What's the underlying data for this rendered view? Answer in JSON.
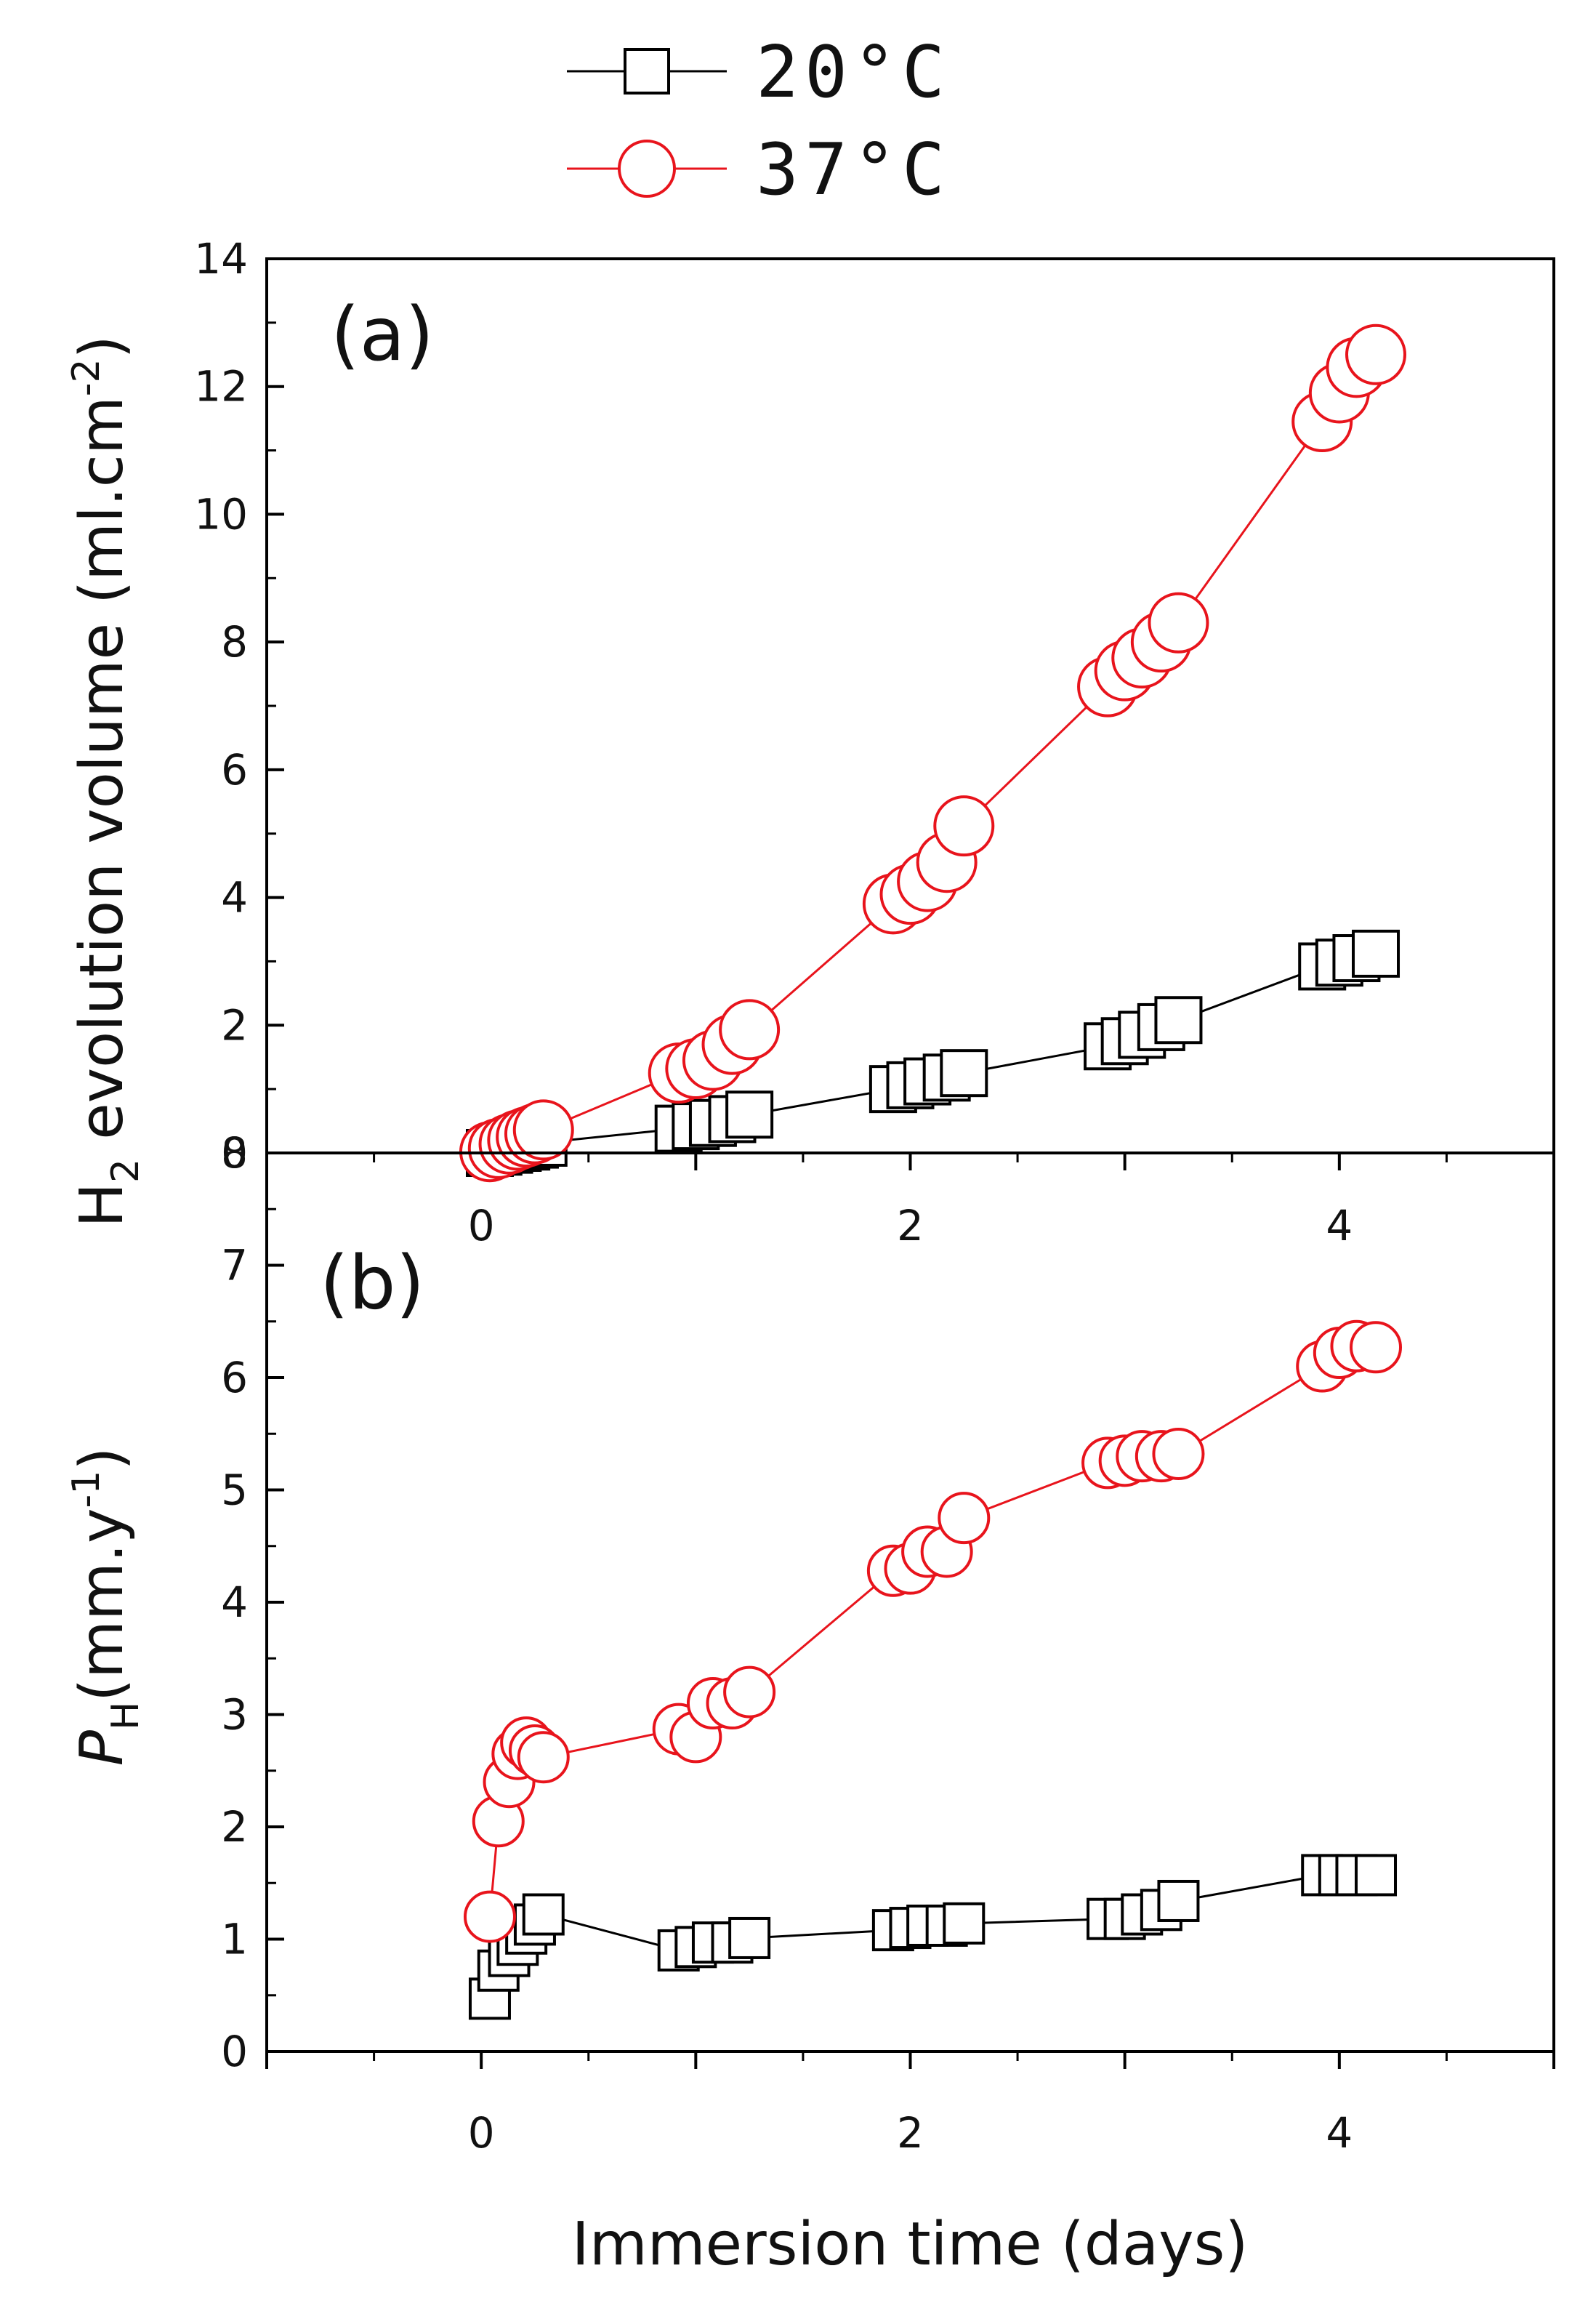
{
  "chart_data": [
    {
      "type": "line",
      "panel": "(a)",
      "ylabel_main": "H",
      "ylabel_sub": "2",
      "ylabel_rest": " evolution volume (ml.cm",
      "ylabel_sup": "-2",
      "ylabel_close": ")",
      "xlim": [
        -1,
        5
      ],
      "ylim": [
        0,
        14
      ],
      "yticks": [
        "0",
        "2",
        "4",
        "6",
        "8",
        "10",
        "12",
        "14"
      ],
      "xticks": [
        "0",
        "2",
        "4"
      ],
      "series": [
        {
          "name": "20°C",
          "color": "#000000",
          "marker": "square",
          "x": [
            0.04,
            0.08,
            0.13,
            0.17,
            0.21,
            0.25,
            0.29,
            0.92,
            1.0,
            1.08,
            1.17,
            1.25,
            1.92,
            2.0,
            2.08,
            2.17,
            2.25,
            2.92,
            3.0,
            3.08,
            3.17,
            3.25,
            3.92,
            4.0,
            4.08,
            4.17
          ],
          "y": [
            0.0,
            0.02,
            0.05,
            0.08,
            0.1,
            0.13,
            0.16,
            0.38,
            0.42,
            0.47,
            0.53,
            0.6,
            1.0,
            1.06,
            1.12,
            1.18,
            1.25,
            1.67,
            1.75,
            1.85,
            1.97,
            2.08,
            2.92,
            2.98,
            3.05,
            3.12
          ]
        },
        {
          "name": "37°C",
          "color": "#E8141C",
          "marker": "circle",
          "x": [
            0.04,
            0.08,
            0.13,
            0.17,
            0.21,
            0.25,
            0.29,
            0.92,
            1.0,
            1.08,
            1.17,
            1.25,
            1.92,
            2.0,
            2.08,
            2.17,
            2.25,
            2.92,
            3.0,
            3.08,
            3.17,
            3.25,
            3.92,
            4.0,
            4.08,
            4.17
          ],
          "y": [
            0.02,
            0.07,
            0.14,
            0.2,
            0.25,
            0.3,
            0.36,
            1.25,
            1.32,
            1.45,
            1.7,
            1.93,
            3.9,
            4.05,
            4.25,
            4.55,
            5.12,
            7.3,
            7.55,
            7.75,
            8.0,
            8.3,
            11.45,
            11.9,
            12.3,
            12.5
          ]
        }
      ]
    },
    {
      "type": "line",
      "panel": "(b)",
      "ylabel_main": "P",
      "ylabel_sub": "H",
      "ylabel_rest": "(mm.y",
      "ylabel_sup": "-1",
      "ylabel_close": ")",
      "xlabel": "Immersion time (days)",
      "xlim": [
        -1,
        5
      ],
      "ylim": [
        0,
        8
      ],
      "yticks": [
        "0",
        "1",
        "2",
        "3",
        "4",
        "5",
        "6",
        "7",
        "8"
      ],
      "xticks": [
        "0",
        "2",
        "4"
      ],
      "series": [
        {
          "name": "20°C",
          "color": "#000000",
          "marker": "square",
          "x": [
            0.04,
            0.08,
            0.13,
            0.17,
            0.21,
            0.25,
            0.29,
            0.92,
            1.0,
            1.08,
            1.17,
            1.25,
            1.92,
            2.0,
            2.08,
            2.17,
            2.25,
            2.92,
            3.0,
            3.08,
            3.17,
            3.25,
            3.92,
            4.0,
            4.08,
            4.17
          ],
          "y": [
            0.47,
            0.72,
            0.85,
            0.95,
            1.05,
            1.13,
            1.22,
            0.9,
            0.93,
            0.97,
            0.97,
            1.01,
            1.08,
            1.1,
            1.12,
            1.12,
            1.14,
            1.18,
            1.18,
            1.22,
            1.26,
            1.34,
            1.57,
            1.57,
            1.57,
            1.57
          ]
        },
        {
          "name": "37°C",
          "color": "#E8141C",
          "marker": "circle",
          "x": [
            0.04,
            0.08,
            0.13,
            0.17,
            0.21,
            0.25,
            0.29,
            0.92,
            1.0,
            1.08,
            1.17,
            1.25,
            1.92,
            2.0,
            2.08,
            2.17,
            2.25,
            2.92,
            3.0,
            3.08,
            3.17,
            3.25,
            3.92,
            4.0,
            4.08,
            4.17
          ],
          "y": [
            1.2,
            2.05,
            2.4,
            2.65,
            2.75,
            2.68,
            2.62,
            2.87,
            2.8,
            3.1,
            3.1,
            3.2,
            4.28,
            4.3,
            4.45,
            4.45,
            4.75,
            5.24,
            5.26,
            5.3,
            5.3,
            5.32,
            6.1,
            6.22,
            6.28,
            6.27
          ]
        }
      ]
    }
  ],
  "legend": {
    "entries": [
      {
        "label": "20°C",
        "color": "#000000",
        "marker": "square"
      },
      {
        "label": "37°C",
        "color": "#E8141C",
        "marker": "circle"
      }
    ]
  }
}
